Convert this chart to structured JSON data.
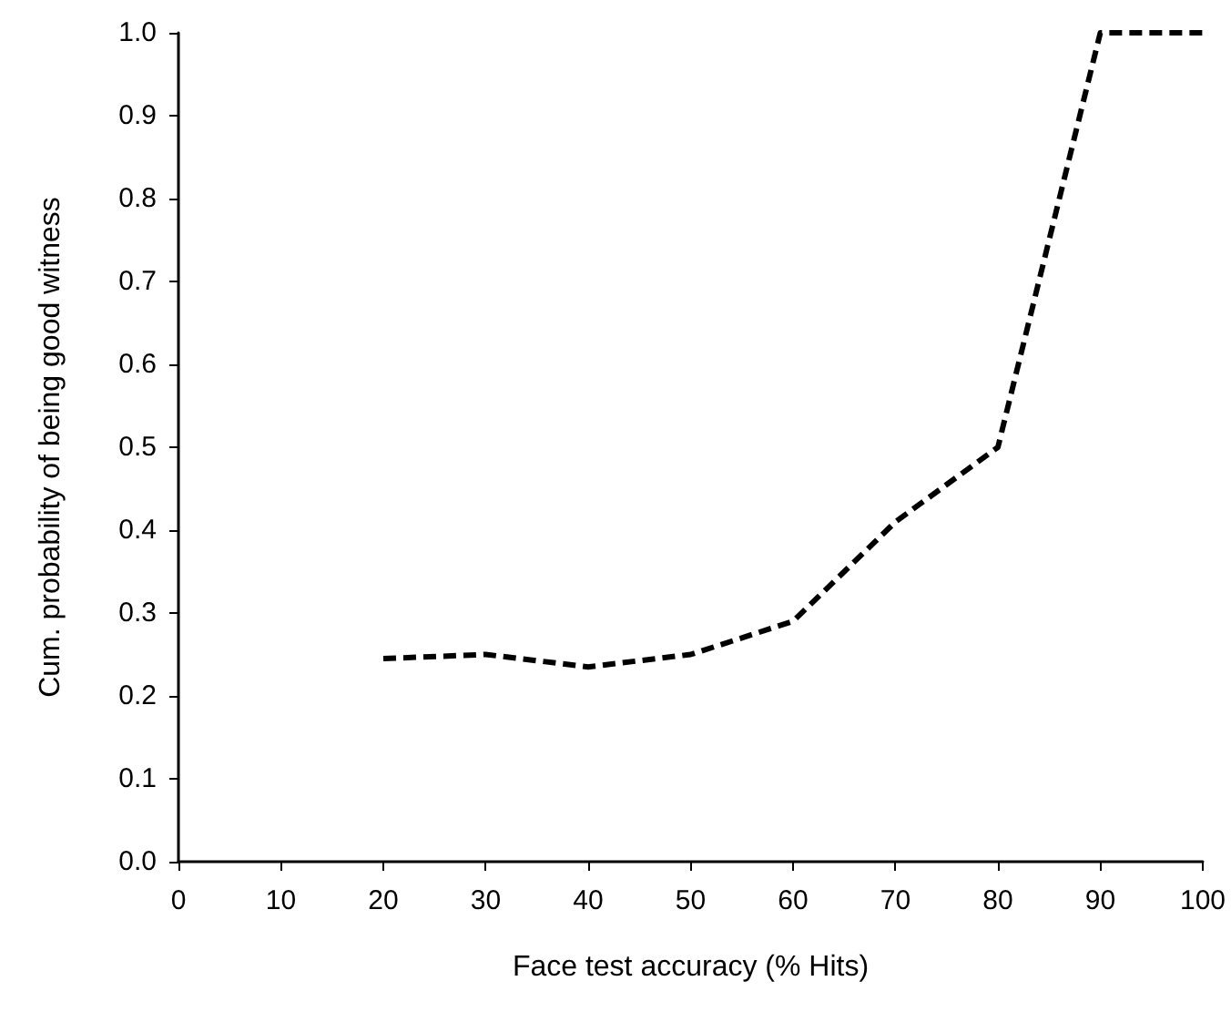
{
  "chart_data": {
    "type": "line",
    "xlabel": "Face test accuracy (% Hits)",
    "ylabel": "Cum. probability of being good witness",
    "x": [
      20,
      30,
      40,
      50,
      60,
      70,
      80,
      90,
      100
    ],
    "series": [
      {
        "color": "#000000",
        "values": [
          0.245,
          0.25,
          0.235,
          0.25,
          0.29,
          0.41,
          0.5,
          1.0,
          1.0
        ]
      }
    ],
    "xlim": [
      0,
      100
    ],
    "xticks": [
      0,
      10,
      20,
      30,
      40,
      50,
      60,
      70,
      80,
      90,
      100
    ],
    "ylim": [
      0,
      1
    ],
    "yticks": [
      {
        "value": 0,
        "label": "0.0"
      },
      {
        "value": 0.1,
        "label": "0.1"
      },
      {
        "value": 0.2,
        "label": "0.2"
      },
      {
        "value": 0.3,
        "label": "0.3"
      },
      {
        "value": 0.4,
        "label": "0.4"
      },
      {
        "value": 0.5,
        "label": "0.5"
      },
      {
        "value": 0.6,
        "label": "0.6"
      },
      {
        "value": 0.7,
        "label": "0.7"
      },
      {
        "value": 0.8,
        "label": "0.8"
      },
      {
        "value": 0.9,
        "label": "0.9"
      },
      {
        "value": 1,
        "label": "1.0"
      }
    ],
    "grid": false,
    "marker": "none",
    "line_style": "dashed"
  }
}
